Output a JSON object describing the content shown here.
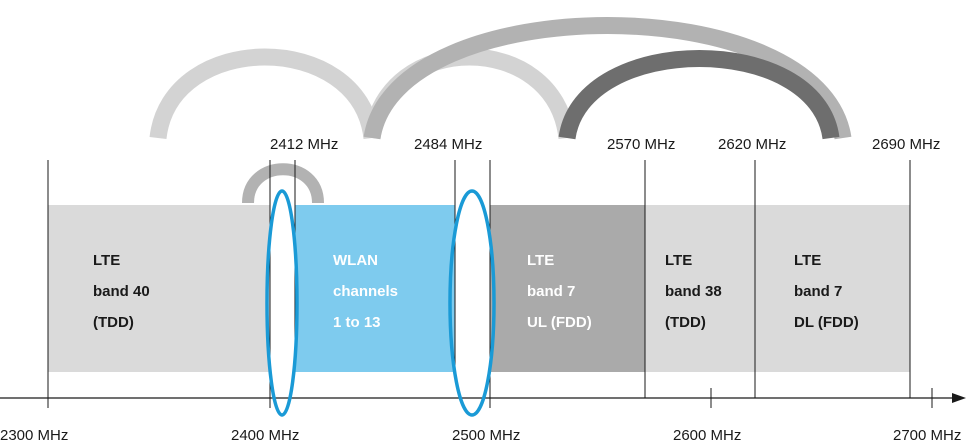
{
  "bottom_axis_labels": [
    "2300 MHz",
    "2400 MHz",
    "2500 MHz",
    "2600 MHz",
    "2700 MHz"
  ],
  "top_labels": [
    "2412 MHz",
    "2484 MHz",
    "2570 MHz",
    "2620 MHz",
    "2690 MHz"
  ],
  "bands": [
    {
      "lines": [
        "LTE",
        "band 40",
        "(TDD)"
      ],
      "color": "#dadada",
      "text_color": "#1a1a1a"
    },
    {
      "lines": [
        "WLAN",
        "channels",
        "1 to 13"
      ],
      "color": "#7ecbee",
      "text_color": "#ffffff"
    },
    {
      "lines": [
        "LTE",
        "band 7",
        "UL (FDD)"
      ],
      "color": "#aaaaaa",
      "text_color": "#ffffff"
    },
    {
      "lines": [
        "LTE",
        "band 38",
        "(TDD)"
      ],
      "color": "#dadada",
      "text_color": "#1a1a1a"
    },
    {
      "lines": [
        "LTE",
        "band 7",
        "DL (FDD)"
      ],
      "color": "#dadada",
      "text_color": "#1a1a1a"
    }
  ],
  "colors": {
    "arc_light": "#d3d3d3",
    "arc_mid": "#b2b2b2",
    "arc_dark": "#6e6e6e",
    "highlight": "#1a9ad6",
    "axis": "#1a1a1a"
  }
}
